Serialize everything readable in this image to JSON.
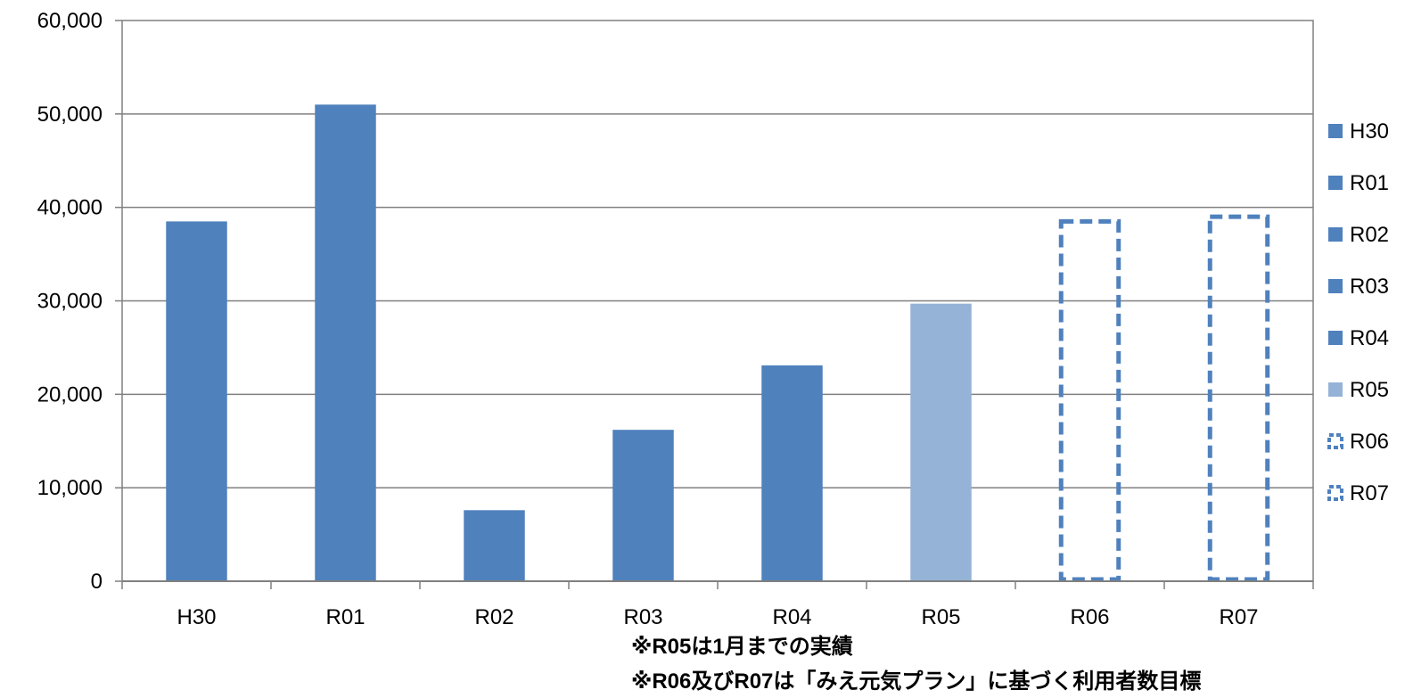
{
  "chart_data": {
    "type": "bar",
    "categories": [
      "H30",
      "R01",
      "R02",
      "R03",
      "R04",
      "R05",
      "R06",
      "R07"
    ],
    "values": [
      38500,
      51000,
      7600,
      16200,
      23100,
      29700,
      38500,
      39000
    ],
    "bar_styles": [
      "solid",
      "solid",
      "solid",
      "solid",
      "solid",
      "light",
      "dashed",
      "dashed"
    ],
    "ylim": [
      0,
      60000
    ],
    "yticks": [
      "0",
      "10,000",
      "20,000",
      "30,000",
      "40,000",
      "50,000",
      "60,000"
    ],
    "ytick_values": [
      0,
      10000,
      20000,
      30000,
      40000,
      50000,
      60000
    ],
    "grid": true,
    "legend": {
      "placement": "right",
      "entries": [
        "H30",
        "R01",
        "R02",
        "R03",
        "R04",
        "R05",
        "R06",
        "R07"
      ]
    },
    "colors": {
      "solid": "#4F81BD",
      "light": "#95B3D7",
      "dashed": "#4F81BD",
      "grid": "#808080",
      "axis": "#808080"
    }
  },
  "notes": [
    "※R05は1月までの実績",
    "※R06及びR07は「みえ元気プラン」に基づく利用者数目標"
  ]
}
